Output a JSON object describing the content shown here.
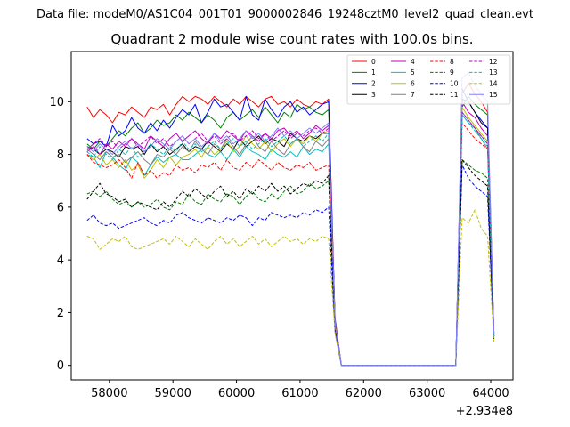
{
  "figure": {
    "suptitle": "Data file: modeM0/AS1C04_001T01_9000002846_19248cztM0_level2_quad_clean.evt",
    "offset_label": "+2.934e8"
  },
  "chart_data": {
    "type": "line",
    "title": "Quadrant 2 module wise count rates with 100.0s bins.",
    "xlabel": "",
    "ylabel": "",
    "x_offset": 293400000,
    "xlim": [
      57400,
      64350
    ],
    "ylim": [
      -0.55,
      11.9
    ],
    "x_ticks": [
      58000,
      59000,
      60000,
      61000,
      62000,
      63000,
      64000
    ],
    "y_ticks": [
      0,
      2,
      4,
      6,
      8,
      10
    ],
    "grid": false,
    "legend": {
      "placement": "top-right",
      "columns": 4
    },
    "x": [
      57650,
      57750,
      57850,
      57950,
      58050,
      58150,
      58250,
      58350,
      58450,
      58550,
      58650,
      58750,
      58850,
      58950,
      59050,
      59150,
      59250,
      59350,
      59450,
      59550,
      59650,
      59750,
      59850,
      59950,
      60050,
      60150,
      60250,
      60350,
      60450,
      60550,
      60650,
      60750,
      60850,
      60950,
      61050,
      61150,
      61250,
      61350,
      61450,
      61550,
      61650,
      61750,
      61850,
      61950,
      62050,
      62150,
      62250,
      62350,
      62450,
      62550,
      62650,
      62750,
      62850,
      62950,
      63050,
      63150,
      63250,
      63350,
      63450,
      63550,
      63650,
      63750,
      63850,
      63950,
      64050
    ],
    "series": [
      {
        "name": "0",
        "color": "#ff0000",
        "dash": "solid",
        "values": [
          9.8,
          9.4,
          9.7,
          9.5,
          9.2,
          9.6,
          9.5,
          9.8,
          9.6,
          9.4,
          9.8,
          9.7,
          9.9,
          9.5,
          9.9,
          10.2,
          10.0,
          10.2,
          10.1,
          9.9,
          10.2,
          10.0,
          9.8,
          10.1,
          9.9,
          10.2,
          10.0,
          9.8,
          10.1,
          10.2,
          9.9,
          10.0,
          9.8,
          10.1,
          9.9,
          9.8,
          10.0,
          9.9,
          10.1,
          1.8,
          0,
          0,
          0,
          0,
          0,
          0,
          0,
          0,
          0,
          0,
          0,
          0,
          0,
          0,
          0,
          0,
          0,
          0,
          0,
          10.3,
          10.7,
          10.3,
          10.0,
          9.6,
          1.2
        ]
      },
      {
        "name": "1",
        "color": "#008000",
        "dash": "solid",
        "values": [
          8.4,
          8.2,
          8.5,
          8.3,
          8.6,
          8.9,
          8.7,
          9.0,
          9.2,
          8.8,
          9.0,
          9.3,
          9.1,
          9.2,
          9.5,
          9.3,
          9.6,
          9.4,
          9.2,
          9.5,
          9.3,
          9.0,
          9.4,
          9.6,
          9.3,
          9.5,
          9.7,
          9.4,
          9.8,
          9.5,
          9.2,
          9.6,
          9.4,
          9.9,
          9.7,
          9.8,
          9.6,
          9.5,
          9.7,
          1.7,
          0,
          0,
          0,
          0,
          0,
          0,
          0,
          0,
          0,
          0,
          0,
          0,
          0,
          0,
          0,
          0,
          0,
          0,
          0,
          9.8,
          10.2,
          9.9,
          9.7,
          9.5,
          1.2
        ]
      },
      {
        "name": "2",
        "color": "#0000ff",
        "dash": "solid",
        "values": [
          8.6,
          8.4,
          8.5,
          8.3,
          9.1,
          8.7,
          8.9,
          9.4,
          9.0,
          8.8,
          9.2,
          8.9,
          9.3,
          9.0,
          9.4,
          9.7,
          9.5,
          9.9,
          9.2,
          9.6,
          10.1,
          9.8,
          9.9,
          9.6,
          9.3,
          10.2,
          9.5,
          9.3,
          10.1,
          9.7,
          9.4,
          9.8,
          10.0,
          9.6,
          9.8,
          9.5,
          9.7,
          9.9,
          10.0,
          1.7,
          0,
          0,
          0,
          0,
          0,
          0,
          0,
          0,
          0,
          0,
          0,
          0,
          0,
          0,
          0,
          0,
          0,
          0,
          0,
          10.5,
          10.0,
          9.6,
          9.3,
          9.0,
          1.2
        ]
      },
      {
        "name": "3",
        "color": "#000000",
        "dash": "solid",
        "values": [
          8.3,
          8.2,
          8.0,
          8.2,
          8.1,
          7.9,
          8.3,
          8.2,
          8.3,
          8.0,
          8.4,
          8.1,
          8.3,
          8.0,
          8.2,
          8.4,
          8.1,
          8.3,
          8.2,
          8.5,
          8.3,
          8.1,
          8.4,
          8.2,
          8.6,
          8.3,
          8.5,
          8.7,
          8.4,
          8.6,
          8.5,
          8.3,
          8.8,
          8.6,
          8.5,
          8.7,
          8.6,
          8.8,
          8.8,
          1.6,
          0,
          0,
          0,
          0,
          0,
          0,
          0,
          0,
          0,
          0,
          0,
          0,
          0,
          0,
          0,
          0,
          0,
          0,
          0,
          10.1,
          10.0,
          9.6,
          9.2,
          9.0,
          1.1
        ]
      },
      {
        "name": "4",
        "color": "#bf00bf",
        "dash": "solid",
        "values": [
          8.1,
          8.3,
          8.0,
          8.4,
          8.2,
          8.5,
          8.3,
          8.6,
          8.4,
          8.2,
          8.7,
          8.5,
          8.3,
          8.6,
          8.8,
          8.5,
          8.7,
          8.9,
          8.6,
          8.4,
          8.8,
          8.6,
          8.9,
          8.7,
          8.5,
          8.9,
          8.7,
          8.5,
          8.8,
          8.6,
          8.9,
          9.0,
          8.7,
          8.9,
          8.6,
          8.8,
          9.1,
          8.9,
          9.1,
          1.6,
          0,
          0,
          0,
          0,
          0,
          0,
          0,
          0,
          0,
          0,
          0,
          0,
          0,
          0,
          0,
          0,
          0,
          0,
          0,
          10.0,
          9.6,
          9.4,
          9.0,
          8.7,
          1.1
        ]
      },
      {
        "name": "5",
        "color": "#00bfbf",
        "dash": "solid",
        "values": [
          8.0,
          7.9,
          7.5,
          8.1,
          7.9,
          7.6,
          7.4,
          7.9,
          7.7,
          7.2,
          7.6,
          7.9,
          7.7,
          7.9,
          8.0,
          7.8,
          7.8,
          8.0,
          8.2,
          8.0,
          7.9,
          8.1,
          7.8,
          8.2,
          7.9,
          8.3,
          8.1,
          8.0,
          7.8,
          8.2,
          8.0,
          7.9,
          8.1,
          7.9,
          8.3,
          8.0,
          8.2,
          8.1,
          8.4,
          1.6,
          0,
          0,
          0,
          0,
          0,
          0,
          0,
          0,
          0,
          0,
          0,
          0,
          0,
          0,
          0,
          0,
          0,
          0,
          0,
          9.5,
          9.2,
          9.0,
          8.7,
          8.4,
          1.1
        ]
      },
      {
        "name": "6",
        "color": "#bfbf00",
        "dash": "solid",
        "values": [
          8.0,
          7.8,
          8.0,
          7.6,
          7.8,
          7.5,
          7.8,
          7.4,
          7.6,
          7.1,
          7.4,
          7.8,
          7.5,
          7.9,
          7.6,
          7.9,
          8.0,
          8.2,
          7.9,
          8.3,
          8.0,
          8.2,
          8.5,
          8.1,
          8.3,
          8.7,
          8.4,
          8.2,
          8.5,
          8.1,
          8.4,
          8.6,
          8.3,
          8.6,
          8.4,
          8.7,
          8.5,
          8.8,
          8.9,
          1.6,
          0,
          0,
          0,
          0,
          0,
          0,
          0,
          0,
          0,
          0,
          0,
          0,
          0,
          0,
          0,
          0,
          0,
          0,
          0,
          9.8,
          9.4,
          9.1,
          8.8,
          8.5,
          1.1
        ]
      },
      {
        "name": "7",
        "color": "#808080",
        "dash": "solid",
        "values": [
          8.2,
          8.0,
          7.8,
          8.1,
          7.9,
          8.0,
          7.7,
          7.9,
          8.1,
          7.8,
          7.6,
          8.0,
          7.9,
          8.2,
          8.0,
          8.3,
          8.1,
          8.5,
          8.2,
          8.0,
          8.4,
          8.2,
          8.6,
          8.3,
          8.0,
          8.4,
          8.7,
          8.3,
          8.1,
          8.5,
          8.2,
          8.0,
          8.4,
          8.6,
          8.3,
          8.1,
          8.5,
          8.3,
          8.6,
          1.6,
          0,
          0,
          0,
          0,
          0,
          0,
          0,
          0,
          0,
          0,
          0,
          0,
          0,
          0,
          0,
          0,
          0,
          0,
          0,
          9.6,
          9.3,
          9.0,
          8.6,
          8.2,
          1.1
        ]
      },
      {
        "name": "8",
        "color": "#ff0000",
        "dash": "dashed",
        "values": [
          8.0,
          7.7,
          7.6,
          7.5,
          7.6,
          7.8,
          7.5,
          7.1,
          7.7,
          7.2,
          7.4,
          7.1,
          7.3,
          7.2,
          7.6,
          7.4,
          7.5,
          7.3,
          7.6,
          7.5,
          7.7,
          7.4,
          7.8,
          7.5,
          7.4,
          7.7,
          7.5,
          7.8,
          7.6,
          7.4,
          7.7,
          7.5,
          7.4,
          7.6,
          7.5,
          7.7,
          7.4,
          7.5,
          7.6,
          1.5,
          0,
          0,
          0,
          0,
          0,
          0,
          0,
          0,
          0,
          0,
          0,
          0,
          0,
          0,
          0,
          0,
          0,
          0,
          0,
          9.2,
          8.9,
          8.6,
          8.4,
          8.2,
          1.1
        ]
      },
      {
        "name": "9",
        "color": "#008000",
        "dash": "dashed",
        "values": [
          6.5,
          6.6,
          6.4,
          6.6,
          6.3,
          6.1,
          6.2,
          6.0,
          6.2,
          6.0,
          6.1,
          6.3,
          6.0,
          5.9,
          6.2,
          6.1,
          6.5,
          6.2,
          6.1,
          6.5,
          6.3,
          6.2,
          6.5,
          6.4,
          6.1,
          6.4,
          6.6,
          6.3,
          6.2,
          6.5,
          6.3,
          6.6,
          6.8,
          6.5,
          6.6,
          6.9,
          6.7,
          6.8,
          7.0,
          1.4,
          0,
          0,
          0,
          0,
          0,
          0,
          0,
          0,
          0,
          0,
          0,
          0,
          0,
          0,
          0,
          0,
          0,
          0,
          0,
          7.8,
          7.6,
          7.4,
          7.3,
          7.1,
          1.0
        ]
      },
      {
        "name": "10",
        "color": "#0000ff",
        "dash": "dashed",
        "values": [
          5.5,
          5.7,
          5.4,
          5.3,
          5.4,
          5.2,
          5.3,
          5.4,
          5.5,
          5.6,
          5.4,
          5.3,
          5.5,
          5.4,
          5.7,
          5.8,
          5.6,
          5.5,
          5.4,
          5.6,
          5.5,
          5.4,
          5.6,
          5.5,
          5.7,
          5.6,
          5.3,
          5.6,
          5.5,
          5.8,
          5.7,
          5.6,
          5.7,
          5.6,
          5.8,
          5.7,
          5.9,
          5.8,
          6.0,
          1.3,
          0,
          0,
          0,
          0,
          0,
          0,
          0,
          0,
          0,
          0,
          0,
          0,
          0,
          0,
          0,
          0,
          0,
          0,
          0,
          7.6,
          7.1,
          6.8,
          6.6,
          6.4,
          1.0
        ]
      },
      {
        "name": "11",
        "color": "#000000",
        "dash": "dashed",
        "values": [
          6.3,
          6.6,
          6.9,
          6.5,
          6.4,
          6.2,
          6.3,
          6.0,
          6.2,
          6.1,
          6.0,
          5.9,
          6.2,
          6.0,
          6.3,
          6.6,
          6.4,
          6.7,
          6.5,
          6.3,
          6.6,
          6.8,
          6.4,
          6.6,
          6.3,
          6.7,
          6.5,
          6.8,
          6.6,
          6.9,
          6.6,
          6.8,
          6.5,
          6.7,
          6.9,
          6.8,
          7.0,
          6.9,
          7.2,
          1.4,
          0,
          0,
          0,
          0,
          0,
          0,
          0,
          0,
          0,
          0,
          0,
          0,
          0,
          0,
          0,
          0,
          0,
          0,
          0,
          7.8,
          7.5,
          7.2,
          7.0,
          6.8,
          1.0
        ]
      },
      {
        "name": "12",
        "color": "#bf00bf",
        "dash": "dashed",
        "values": [
          8.2,
          8.4,
          8.6,
          8.3,
          8.5,
          8.2,
          8.4,
          8.6,
          8.3,
          8.5,
          8.7,
          8.4,
          8.6,
          8.3,
          8.5,
          8.7,
          8.4,
          8.6,
          8.8,
          8.5,
          8.7,
          8.4,
          8.6,
          8.8,
          8.5,
          8.7,
          8.9,
          8.6,
          8.8,
          8.5,
          8.7,
          8.9,
          8.6,
          8.8,
          8.7,
          8.9,
          9.0,
          8.8,
          9.0,
          1.6,
          0,
          0,
          0,
          0,
          0,
          0,
          0,
          0,
          0,
          0,
          0,
          0,
          0,
          0,
          0,
          0,
          0,
          0,
          0,
          9.6,
          9.3,
          9.0,
          8.7,
          8.4,
          1.1
        ]
      },
      {
        "name": "13",
        "color": "#00bfbf",
        "dash": "dashed",
        "values": [
          8.1,
          7.9,
          8.3,
          8.0,
          7.8,
          8.2,
          8.0,
          8.3,
          7.9,
          8.1,
          8.4,
          8.2,
          8.0,
          8.3,
          8.1,
          8.5,
          8.2,
          8.4,
          8.1,
          8.3,
          8.5,
          8.2,
          8.4,
          8.6,
          8.3,
          8.5,
          8.2,
          8.4,
          8.6,
          8.3,
          8.5,
          8.7,
          8.4,
          8.6,
          8.3,
          8.5,
          8.7,
          8.5,
          8.8,
          1.6,
          0,
          0,
          0,
          0,
          0,
          0,
          0,
          0,
          0,
          0,
          0,
          0,
          0,
          0,
          0,
          0,
          0,
          0,
          0,
          9.5,
          9.2,
          8.9,
          8.6,
          8.3,
          1.1
        ]
      },
      {
        "name": "14",
        "color": "#bfbf00",
        "dash": "dashed",
        "values": [
          4.9,
          4.8,
          4.4,
          4.6,
          4.8,
          4.7,
          4.9,
          4.5,
          4.4,
          4.5,
          4.6,
          4.7,
          4.8,
          4.6,
          4.9,
          4.7,
          4.5,
          4.8,
          4.6,
          4.4,
          4.7,
          4.9,
          4.6,
          4.8,
          4.5,
          4.7,
          4.9,
          4.6,
          4.8,
          4.5,
          4.7,
          4.9,
          4.7,
          4.8,
          4.6,
          4.8,
          4.7,
          4.9,
          4.8,
          1.2,
          0,
          0,
          0,
          0,
          0,
          0,
          0,
          0,
          0,
          0,
          0,
          0,
          0,
          0,
          0,
          0,
          0,
          0,
          0,
          5.6,
          5.4,
          5.9,
          5.2,
          4.9,
          0.9
        ]
      },
      {
        "name": "15",
        "color": "#8080ff",
        "dash": "solid",
        "values": [
          8.3,
          8.1,
          8.4,
          8.2,
          8.0,
          8.3,
          8.5,
          8.2,
          8.4,
          8.1,
          8.3,
          8.6,
          8.4,
          8.2,
          8.5,
          8.7,
          8.4,
          8.6,
          8.3,
          8.5,
          8.8,
          8.5,
          8.7,
          8.4,
          8.6,
          8.9,
          8.6,
          8.8,
          8.5,
          8.7,
          9.0,
          8.7,
          8.9,
          8.6,
          8.8,
          9.0,
          8.8,
          9.0,
          9.2,
          1.6,
          0,
          0,
          0,
          0,
          0,
          0,
          0,
          0,
          0,
          0,
          0,
          0,
          0,
          0,
          0,
          0,
          0,
          0,
          0,
          10.9,
          11.1,
          10.6,
          10.3,
          10.0,
          1.2
        ]
      }
    ]
  }
}
